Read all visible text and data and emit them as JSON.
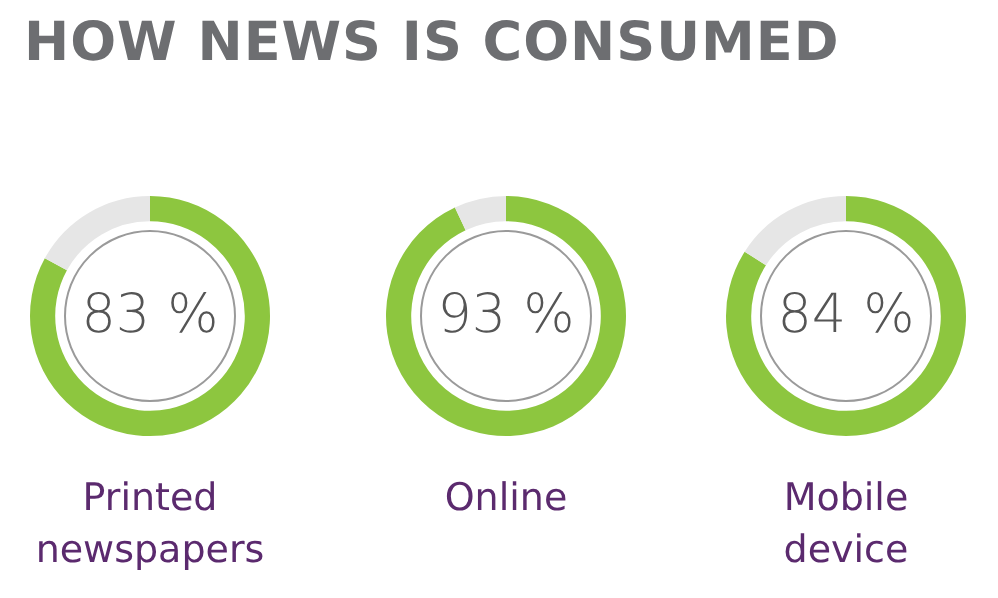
{
  "chart_data": [
    {
      "type": "other",
      "title": "HOW NEWS IS CONSUMED"
    },
    {
      "type": "donut",
      "title": "Printed newspapers",
      "categories": [
        null,
        null
      ],
      "values": [
        83,
        17
      ],
      "colors": [
        "#8dc63f",
        "#e6e6e6"
      ],
      "value_labels": [
        "83 %",
        null
      ]
    },
    {
      "type": "donut",
      "title": "Online",
      "categories": [
        null,
        null
      ],
      "values": [
        93,
        7
      ],
      "colors": [
        "#8dc63f",
        "#e6e6e6"
      ],
      "value_labels": [
        "93 %",
        null
      ]
    },
    {
      "type": "donut",
      "title": "Mobile device",
      "categories": [
        null,
        null
      ],
      "values": [
        84,
        16
      ],
      "colors": [
        "#8dc63f",
        "#e6e6e6"
      ],
      "value_labels": [
        "84 %",
        null
      ]
    }
  ]
}
